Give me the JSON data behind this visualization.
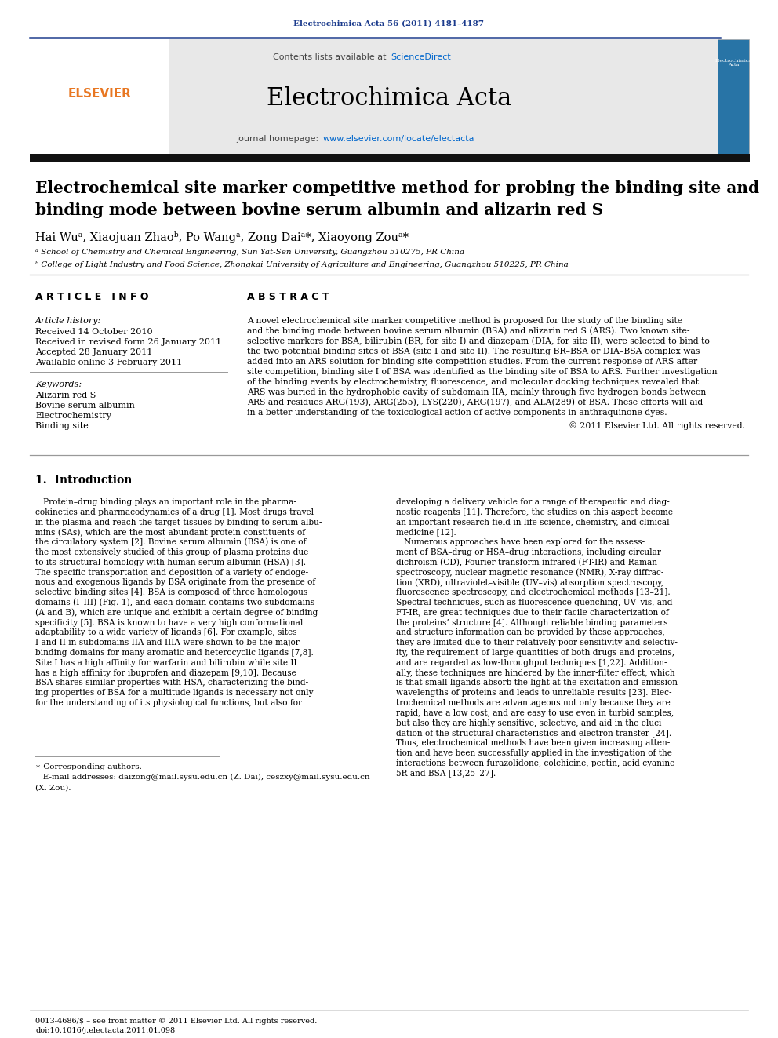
{
  "page_width": 9.92,
  "page_height": 13.23,
  "background_color": "#ffffff",
  "journal_header_text": "Electrochimica Acta 56 (2011) 4181–4187",
  "journal_header_color": "#1a3a8c",
  "science_direct": "ScienceDirect",
  "science_direct_color": "#0066cc",
  "journal_name": "Electrochimica Acta",
  "journal_homepage_url": "www.elsevier.com/locate/electacta",
  "journal_homepage_url_color": "#0066cc",
  "title_line1": "Electrochemical site marker competitive method for probing the binding site and",
  "title_line2": "binding mode between bovine serum albumin and alizarin red S",
  "affil_a": "ᵃ School of Chemistry and Chemical Engineering, Sun Yat-Sen University, Guangzhou 510275, PR China",
  "affil_b": "ᵇ College of Light Industry and Food Science, Zhongkai University of Agriculture and Engineering, Guangzhou 510225, PR China",
  "article_history_label": "Article history:",
  "received": "Received 14 October 2010",
  "received_revised": "Received in revised form 26 January 2011",
  "accepted": "Accepted 28 January 2011",
  "available": "Available online 3 February 2011",
  "keywords_label": "Keywords:",
  "keyword1": "Alizarin red S",
  "keyword2": "Bovine serum albumin",
  "keyword3": "Electrochemistry",
  "keyword4": "Binding site",
  "abstract_text1": "A novel electrochemical site marker competitive method is proposed for the study of the binding site",
  "abstract_text2": "and the binding mode between bovine serum albumin (BSA) and alizarin red S (ARS). Two known site-",
  "abstract_text3": "selective markers for BSA, bilirubin (BR, for site I) and diazepam (DIA, for site II), were selected to bind to",
  "abstract_text4": "the two potential binding sites of BSA (site I and site II). The resulting BR–BSA or DIA–BSA complex was",
  "abstract_text5": "added into an ARS solution for binding site competition studies. From the current response of ARS after",
  "abstract_text6": "site competition, binding site I of BSA was identified as the binding site of BSA to ARS. Further investigation",
  "abstract_text7": "of the binding events by electrochemistry, fluorescence, and molecular docking techniques revealed that",
  "abstract_text8": "ARS was buried in the hydrophobic cavity of subdomain IIA, mainly through five hydrogen bonds between",
  "abstract_text9": "ARS and residues ARG(193), ARG(255), LYS(220), ARG(197), and ALA(289) of BSA. These efforts will aid",
  "abstract_text10": "in a better understanding of the toxicological action of active components in anthraquinone dyes.",
  "abstract_copyright": "© 2011 Elsevier Ltd. All rights reserved.",
  "intro_header": "1.  Introduction",
  "col1_lines": [
    "   Protein–drug binding plays an important role in the pharma-",
    "cokinetics and pharmacodynamics of a drug [1]. Most drugs travel",
    "in the plasma and reach the target tissues by binding to serum albu-",
    "mins (SAs), which are the most abundant protein constituents of",
    "the circulatory system [2]. Bovine serum albumin (BSA) is one of",
    "the most extensively studied of this group of plasma proteins due",
    "to its structural homology with human serum albumin (HSA) [3].",
    "The specific transportation and deposition of a variety of endoge-",
    "nous and exogenous ligands by BSA originate from the presence of",
    "selective binding sites [4]. BSA is composed of three homologous",
    "domains (I–III) (Fig. 1), and each domain contains two subdomains",
    "(A and B), which are unique and exhibit a certain degree of binding",
    "specificity [5]. BSA is known to have a very high conformational",
    "adaptability to a wide variety of ligands [6]. For example, sites",
    "I and II in subdomains IIA and IIIA were shown to be the major",
    "binding domains for many aromatic and heterocyclic ligands [7,8].",
    "Site I has a high affinity for warfarin and bilirubin while site II",
    "has a high affinity for ibuprofen and diazepam [9,10]. Because",
    "BSA shares similar properties with HSA, characterizing the bind-",
    "ing properties of BSA for a multitude ligands is necessary not only",
    "for the understanding of its physiological functions, but also for"
  ],
  "col2_lines": [
    "developing a delivery vehicle for a range of therapeutic and diag-",
    "nostic reagents [11]. Therefore, the studies on this aspect become",
    "an important research field in life science, chemistry, and clinical",
    "medicine [12].",
    "   Numerous approaches have been explored for the assess-",
    "ment of BSA–drug or HSA–drug interactions, including circular",
    "dichroism (CD), Fourier transform infrared (FT-IR) and Raman",
    "spectroscopy, nuclear magnetic resonance (NMR), X-ray diffrac-",
    "tion (XRD), ultraviolet–visible (UV–vis) absorption spectroscopy,",
    "fluorescence spectroscopy, and electrochemical methods [13–21].",
    "Spectral techniques, such as fluorescence quenching, UV–vis, and",
    "FT-IR, are great techniques due to their facile characterization of",
    "the proteins’ structure [4]. Although reliable binding parameters",
    "and structure information can be provided by these approaches,",
    "they are limited due to their relatively poor sensitivity and selectiv-",
    "ity, the requirement of large quantities of both drugs and proteins,",
    "and are regarded as low-throughput techniques [1,22]. Addition-",
    "ally, these techniques are hindered by the inner-filter effect, which",
    "is that small ligands absorb the light at the excitation and emission",
    "wavelengths of proteins and leads to unreliable results [23]. Elec-",
    "trochemical methods are advantageous not only because they are",
    "rapid, have a low cost, and are easy to use even in turbid samples,",
    "but also they are highly sensitive, selective, and aid in the eluci-",
    "dation of the structural characteristics and electron transfer [24].",
    "Thus, electrochemical methods have been given increasing atten-",
    "tion and have been successfully applied in the investigation of the",
    "interactions between furazolidone, colchicine, pectin, acid cyanine",
    "5R and BSA [13,25–27]."
  ],
  "footnote_star": "∗ Corresponding authors.",
  "footnote_email1": "   E-mail addresses: daizong@mail.sysu.edu.cn (Z. Dai), ceszxy@mail.sysu.edu.cn",
  "footnote_email2": "(X. Zou).",
  "bottom_issn": "0013-4686/$ – see front matter © 2011 Elsevier Ltd. All rights reserved.",
  "bottom_doi": "doi:10.1016/j.electacta.2011.01.098",
  "gray_box_color": "#e8e8e8",
  "dark_bar_color": "#111111",
  "header_line_color": "#1a3a8c",
  "separator_color": "#999999"
}
